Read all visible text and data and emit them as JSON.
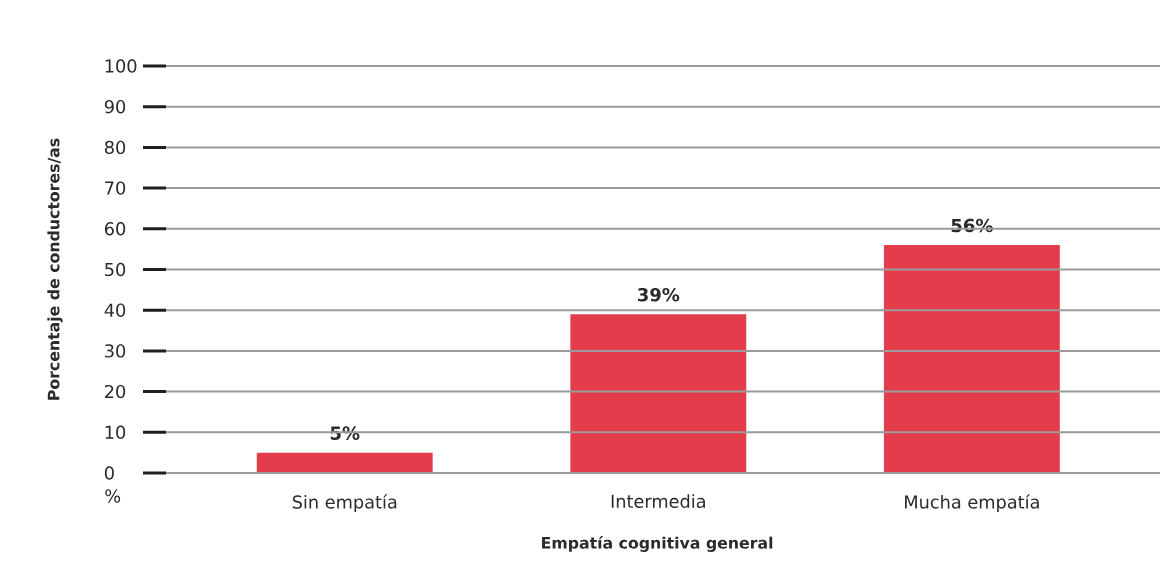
{
  "chart_data": {
    "type": "bar",
    "xlabel": "Empatía cognitiva general",
    "ylabel": "Porcentaje de conductores/as",
    "categories": [
      "Sin empatía",
      "Intermedia",
      "Mucha empatía"
    ],
    "values": [
      5,
      39,
      56
    ],
    "color": "#e33c4a",
    "value_labels": [
      "5%",
      "39%",
      "56%"
    ],
    "ylim": [
      0,
      100
    ],
    "yticks": [
      0,
      10,
      20,
      30,
      40,
      50,
      60,
      70,
      80,
      90,
      100
    ],
    "grid": "y",
    "annotations": [
      "%"
    ]
  }
}
